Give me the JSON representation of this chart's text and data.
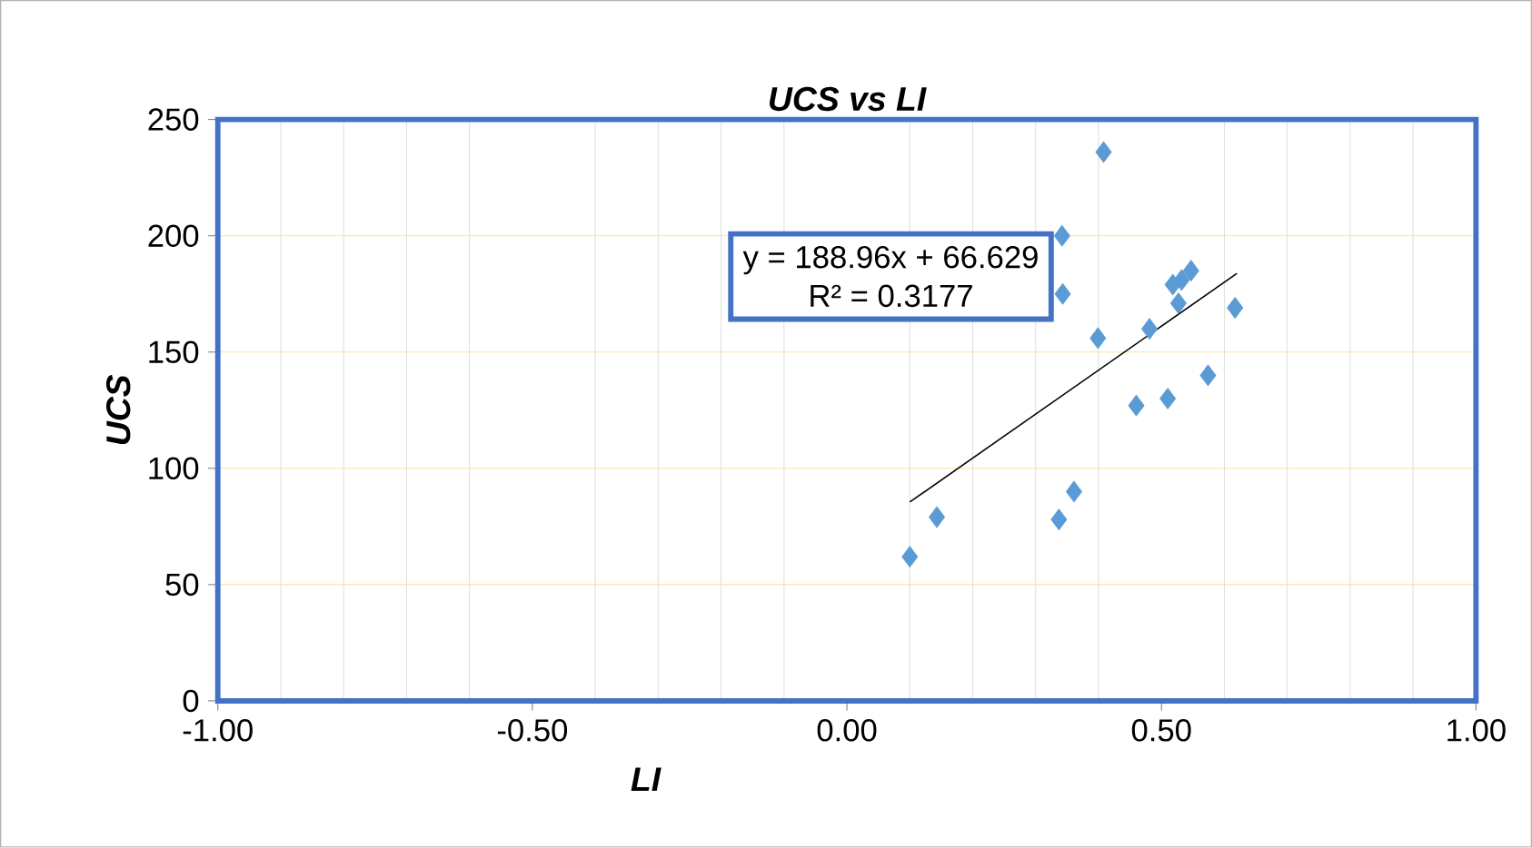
{
  "chart_data": {
    "type": "scatter",
    "title": "UCS vs LI",
    "xlabel": "LI",
    "ylabel": "UCS",
    "xlim": [
      -1,
      1
    ],
    "ylim": [
      0,
      250
    ],
    "xticks": [
      {
        "value": -1,
        "label": "-1.00"
      },
      {
        "value": -0.5,
        "label": "-0.50"
      },
      {
        "value": 0,
        "label": "0.00"
      },
      {
        "value": 0.5,
        "label": "0.50"
      },
      {
        "value": 1,
        "label": "1.00"
      }
    ],
    "yticks": [
      0,
      50,
      100,
      150,
      200,
      250
    ],
    "grid": true,
    "marker": "diamond",
    "annotations": [
      "y = 188.96x + 66.629",
      "R² = 0.3177"
    ],
    "series": [
      {
        "color": "#5b9bd5",
        "x": [
          0.1,
          0.143,
          0.337,
          0.361,
          0.342,
          0.343,
          0.408,
          0.399,
          0.46,
          0.481,
          0.51,
          0.518,
          0.527,
          0.547,
          0.532,
          0.574,
          0.617
        ],
        "values": [
          62,
          79,
          78,
          90,
          200,
          175,
          236,
          156,
          127,
          160,
          130,
          179,
          171,
          185,
          181,
          140,
          169
        ]
      },
      {
        "type": "line",
        "color": "#000000",
        "marker": "none",
        "x": [
          0.1,
          0.62
        ],
        "values": [
          85.5,
          183.8
        ]
      }
    ]
  }
}
